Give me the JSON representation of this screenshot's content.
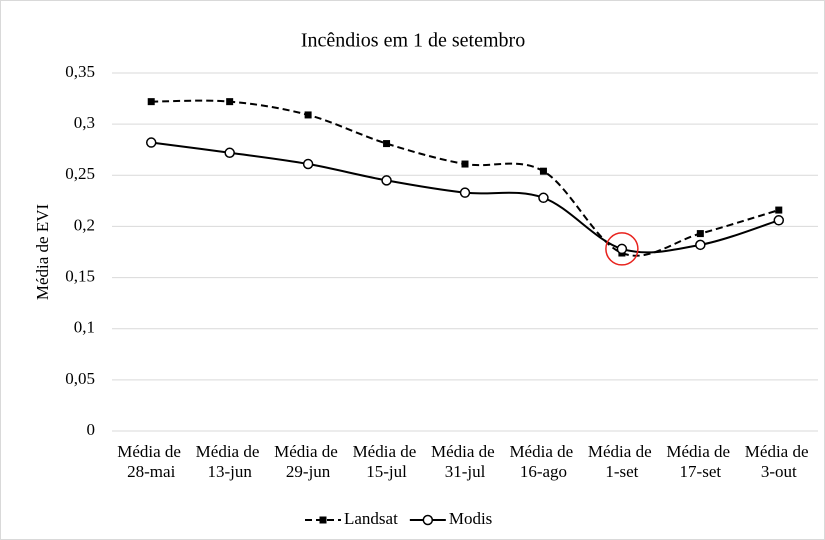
{
  "chart_data": {
    "type": "line",
    "title": "Incêndios em 1 de setembro",
    "y_label": "Média de EVI",
    "categories": [
      "Média de 28-mai",
      "Média de 13-jun",
      "Média de 29-jun",
      "Média de 15-jul",
      "Média de 31-jul",
      "Média de 16-ago",
      "Média de 1-set",
      "Média de 17-set",
      "Média de 3-out"
    ],
    "series": [
      {
        "name": "Landsat",
        "color": "#000000",
        "dash": true,
        "marker": "square",
        "values": [
          0.322,
          0.322,
          0.309,
          0.281,
          0.261,
          0.254,
          0.174,
          0.193,
          0.216
        ]
      },
      {
        "name": "Modis",
        "color": "#000000",
        "dash": false,
        "marker": "circle",
        "values": [
          0.282,
          0.272,
          0.261,
          0.245,
          0.233,
          0.228,
          0.178,
          0.182,
          0.206
        ]
      }
    ],
    "ylim": [
      0,
      0.35
    ],
    "yticks": [
      0,
      {
        "value": 0.05,
        "label": "0,05"
      },
      {
        "value": 0.1,
        "label": "0,1"
      },
      {
        "value": 0.15,
        "label": "0,15"
      },
      {
        "value": 0.2,
        "label": "0,2"
      },
      {
        "value": 0.25,
        "label": "0,25"
      },
      {
        "value": 0.3,
        "label": "0,3"
      },
      {
        "value": 0.35,
        "label": "0,35"
      }
    ],
    "grid": true,
    "legend": "bottom",
    "highlight": {
      "series": 1,
      "index": 6,
      "color": "#e8231e"
    }
  }
}
